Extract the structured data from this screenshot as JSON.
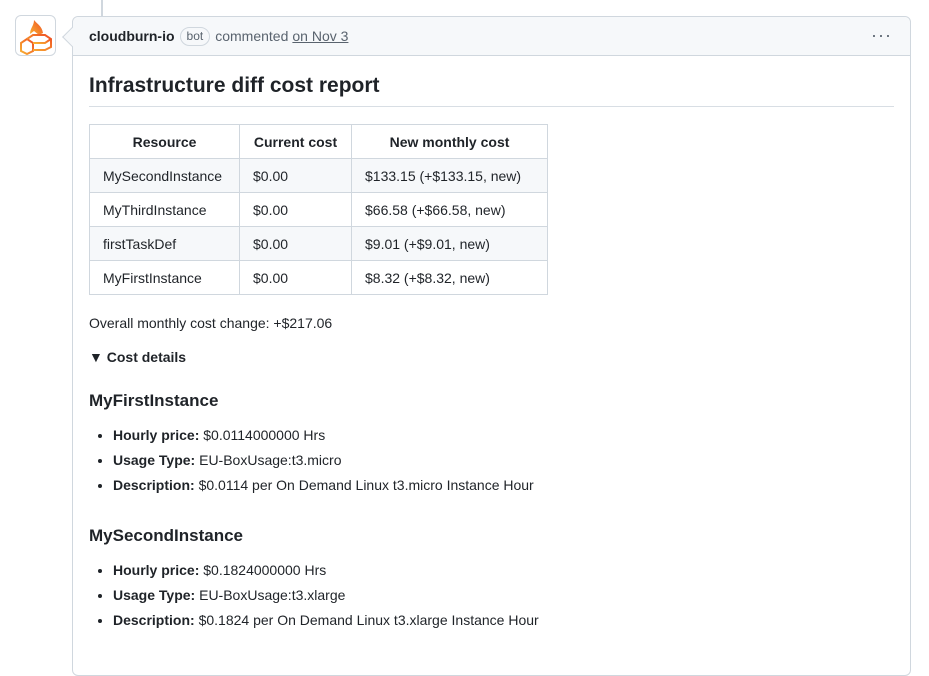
{
  "comment": {
    "author": "cloudburn-io",
    "badge": "bot",
    "action": "commented",
    "date": "on Nov 3",
    "menu": "···"
  },
  "report": {
    "title": "Infrastructure diff cost report",
    "table": {
      "headers": [
        "Resource",
        "Current cost",
        "New monthly cost"
      ],
      "rows": [
        [
          "MySecondInstance",
          "$0.00",
          "$133.15 (+$133.15, new)"
        ],
        [
          "MyThirdInstance",
          "$0.00",
          "$66.58 (+$66.58, new)"
        ],
        [
          "firstTaskDef",
          "$0.00",
          "$9.01 (+$9.01, new)"
        ],
        [
          "MyFirstInstance",
          "$0.00",
          "$8.32 (+$8.32, new)"
        ]
      ]
    },
    "overall": "Overall monthly cost change: +$217.06",
    "details_summary": "▼ Cost details",
    "sections": [
      {
        "name": "MyFirstInstance",
        "items": [
          {
            "label": "Hourly price:",
            "value": " $0.0114000000 Hrs"
          },
          {
            "label": "Usage Type:",
            "value": " EU-BoxUsage:t3.micro"
          },
          {
            "label": "Description:",
            "value": " $0.0114 per On Demand Linux t3.micro Instance Hour"
          }
        ]
      },
      {
        "name": "MySecondInstance",
        "items": [
          {
            "label": "Hourly price:",
            "value": " $0.1824000000 Hrs"
          },
          {
            "label": "Usage Type:",
            "value": " EU-BoxUsage:t3.xlarge"
          },
          {
            "label": "Description:",
            "value": " $0.1824 per On Demand Linux t3.xlarge Instance Hour"
          }
        ]
      }
    ]
  }
}
